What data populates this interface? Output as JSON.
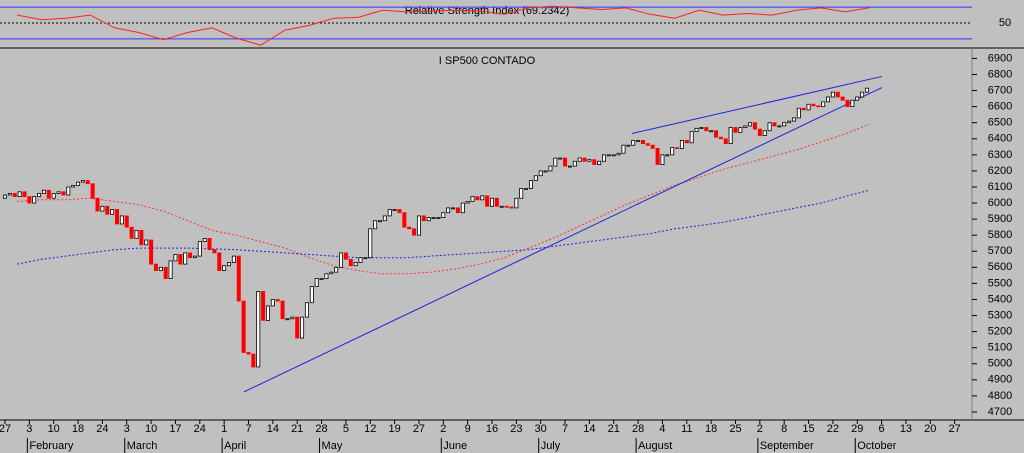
{
  "chart_data": [
    {
      "type": "line",
      "title": "Relative Strength Index (69.2342)",
      "color": "#ff2020",
      "level_color": "#3030ff",
      "values": [
        60,
        54,
        56,
        60,
        44,
        38,
        29,
        38,
        44,
        31,
        22,
        41,
        47,
        56,
        57,
        66,
        64,
        65,
        66,
        65,
        61,
        69,
        71,
        69,
        67,
        69,
        61,
        56,
        66,
        60,
        62,
        60,
        66,
        69,
        64,
        69.2342,
        null,
        null,
        null,
        null
      ],
      "ylim": [
        21,
        79
      ],
      "yticks": [
        50
      ],
      "levels": [
        30,
        70
      ]
    },
    {
      "type": "candlestick",
      "title": "I SP500 CONTADO",
      "up_color": "#ffffff",
      "down_color": "#ff0000",
      "categories": [
        "27",
        "3",
        "10",
        "18",
        "24",
        "3",
        "10",
        "17",
        "24",
        "1",
        "7",
        "14",
        "21",
        "28",
        "5",
        "12",
        "19",
        "27",
        "2",
        "9",
        "16",
        "23",
        "30",
        "7",
        "14",
        "21",
        "28",
        "4",
        "11",
        "18",
        "25",
        "2",
        "8",
        "15",
        "22",
        "29",
        "6",
        "13",
        "20",
        "27"
      ],
      "months": [
        null,
        "February",
        null,
        null,
        null,
        "March",
        null,
        null,
        null,
        "April",
        null,
        null,
        null,
        "May",
        null,
        null,
        null,
        null,
        "June",
        null,
        null,
        null,
        "July",
        null,
        null,
        null,
        "August",
        null,
        null,
        null,
        null,
        "September",
        null,
        null,
        null,
        "October",
        null,
        null,
        null,
        null
      ],
      "open": [
        6030,
        6050,
        6060,
        6040,
        6070,
        6040,
        6000,
        6040,
        6060,
        6080,
        6030,
        6060,
        6070,
        6050,
        6100,
        6110,
        6130,
        6140,
        6120,
        6030,
        5950,
        5980,
        5930,
        5960,
        5870,
        5920,
        5850,
        5780,
        5830,
        5740,
        5770,
        5620,
        5580,
        5600,
        5530,
        5640,
        5680,
        5620,
        5690,
        5660,
        5670,
        5760,
        5780,
        5710,
        5690,
        5580,
        5610,
        5630,
        5670,
        5390,
        5070,
        5060,
        4980,
        5450,
        5270,
        5360,
        5400,
        5390,
        5280,
        5280,
        5290,
        5160,
        5290,
        5380,
        5480,
        5530,
        5530,
        5560,
        5570,
        5600,
        5690,
        5650,
        5610,
        5630,
        5660,
        5660,
        5840,
        5890,
        5890,
        5920,
        5960,
        5960,
        5940,
        5850,
        5840,
        5800,
        5920,
        5890,
        5910,
        5910,
        5910,
        5940,
        5970,
        5970,
        5940,
        6000,
        6010,
        6040,
        6020,
        6045,
        5980,
        6030,
        5980,
        5980,
        5975,
        5970,
        6030,
        6090,
        6090,
        6140,
        6170,
        6200,
        6200,
        6230,
        6280,
        6280,
        6230,
        6230,
        6260,
        6280,
        6260,
        6270,
        6240,
        6260,
        6300,
        6300,
        6300,
        6310,
        6360,
        6360,
        6390,
        6390,
        6370,
        6360,
        6340,
        6240,
        6300,
        6300,
        6345,
        6340,
        6390,
        6375,
        6445,
        6465,
        6470,
        6450,
        6450,
        6410,
        6400,
        6370,
        6470,
        6440,
        6470,
        6480,
        6500,
        6460,
        6420,
        6450,
        6500,
        6480,
        6480,
        6500,
        6510,
        6530,
        6590,
        6580,
        6615,
        6605,
        6600,
        6630,
        6660,
        6690,
        6660,
        6640,
        6600,
        6640,
        6660,
        6690
      ],
      "close": [
        6050,
        6060,
        6040,
        6070,
        6040,
        6000,
        6040,
        6060,
        6080,
        6030,
        6060,
        6070,
        6050,
        6100,
        6110,
        6130,
        6140,
        6120,
        6030,
        5950,
        5980,
        5930,
        5960,
        5870,
        5920,
        5850,
        5780,
        5830,
        5740,
        5770,
        5620,
        5580,
        5600,
        5530,
        5640,
        5680,
        5620,
        5690,
        5660,
        5670,
        5760,
        5780,
        5710,
        5690,
        5580,
        5610,
        5630,
        5670,
        5390,
        5070,
        5060,
        4980,
        5450,
        5270,
        5360,
        5400,
        5390,
        5280,
        5280,
        5290,
        5160,
        5290,
        5380,
        5480,
        5530,
        5530,
        5560,
        5570,
        5600,
        5690,
        5650,
        5610,
        5630,
        5660,
        5660,
        5840,
        5890,
        5890,
        5920,
        5960,
        5960,
        5940,
        5850,
        5840,
        5800,
        5920,
        5890,
        5910,
        5910,
        5910,
        5940,
        5970,
        5970,
        5940,
        6000,
        6010,
        6040,
        6020,
        6045,
        5980,
        6030,
        5980,
        5980,
        5975,
        5970,
        6030,
        6090,
        6090,
        6140,
        6170,
        6200,
        6200,
        6230,
        6280,
        6280,
        6230,
        6230,
        6260,
        6280,
        6260,
        6270,
        6240,
        6260,
        6300,
        6300,
        6300,
        6310,
        6360,
        6360,
        6390,
        6390,
        6370,
        6360,
        6340,
        6240,
        6300,
        6300,
        6345,
        6340,
        6390,
        6375,
        6445,
        6465,
        6470,
        6450,
        6450,
        6410,
        6400,
        6370,
        6470,
        6440,
        6470,
        6480,
        6500,
        6460,
        6420,
        6450,
        6500,
        6480,
        6480,
        6500,
        6510,
        6530,
        6590,
        6580,
        6615,
        6605,
        6600,
        6630,
        6660,
        6690,
        6660,
        6640,
        6600,
        6640,
        6660,
        6690,
        6715
      ],
      "series": [
        {
          "color": "#ff3030",
          "values": [
            6010,
            6020,
            6020,
            6030,
            6010,
            5990,
            5950,
            5890,
            5830,
            5800,
            5760,
            5720,
            5660,
            5610,
            5580,
            5560,
            5560,
            5570,
            5590,
            5620,
            5660,
            5720,
            5780,
            5850,
            5920,
            5990,
            6050,
            6110,
            6160,
            6210,
            6250,
            6290,
            6330,
            6380,
            6430,
            6490,
            null,
            null,
            null,
            null
          ]
        },
        {
          "color": "#2020e0",
          "values": [
            5620,
            5650,
            5670,
            5690,
            5710,
            5720,
            5720,
            5720,
            5715,
            5710,
            5700,
            5690,
            5680,
            5670,
            5660,
            5660,
            5660,
            5670,
            5680,
            5690,
            5700,
            5710,
            5730,
            5750,
            5770,
            5790,
            5810,
            5840,
            5860,
            5880,
            5910,
            5940,
            5970,
            6000,
            6040,
            6080,
            null,
            null,
            null,
            null
          ]
        }
      ],
      "trendlines": [
        {
          "color": "#2020e0",
          "values": [
            4825,
            6719
          ]
        },
        {
          "color": "#2020e0",
          "values": [
            6433,
            6788
          ]
        }
      ],
      "ylim": [
        4650,
        6940
      ],
      "yticks": [
        4700,
        4800,
        4900,
        5000,
        5100,
        5200,
        5300,
        5400,
        5500,
        5600,
        5700,
        5800,
        5900,
        6000,
        6100,
        6200,
        6300,
        6400,
        6500,
        6600,
        6700,
        6800,
        6900
      ]
    }
  ]
}
